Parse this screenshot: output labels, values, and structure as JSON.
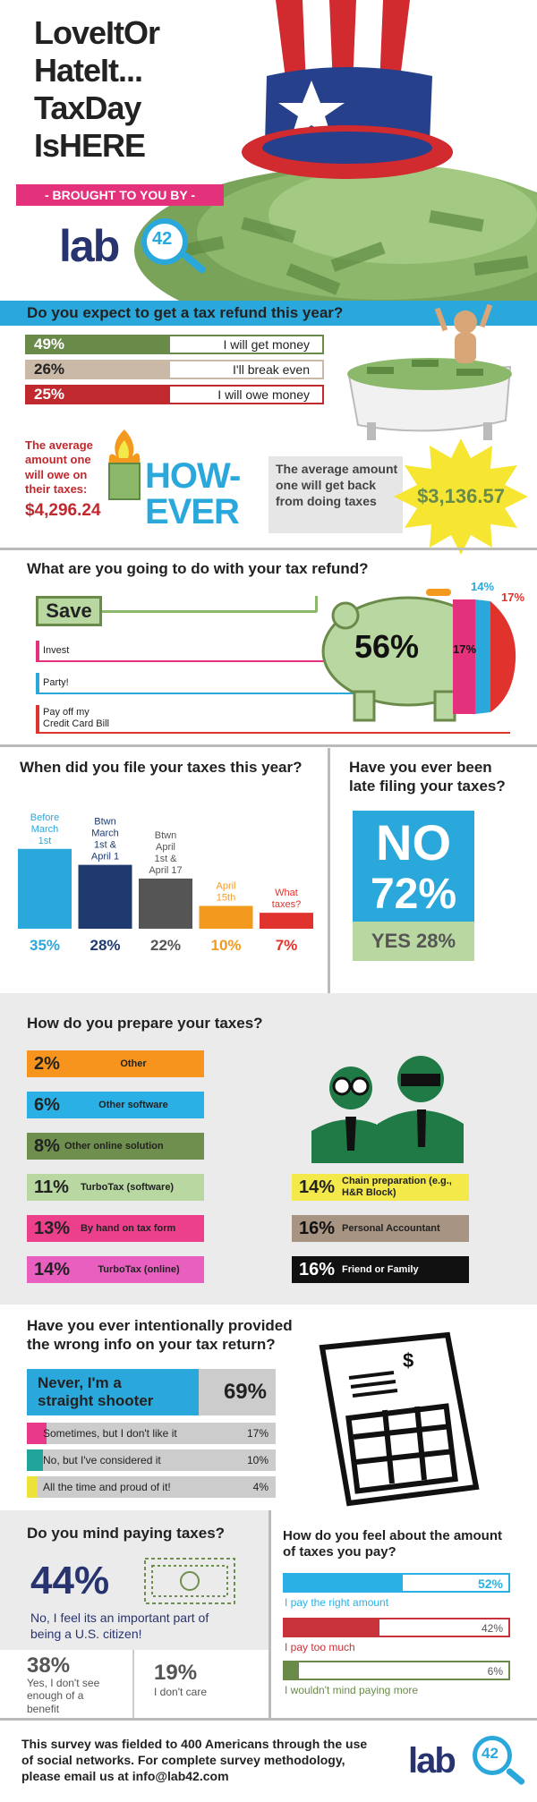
{
  "hero": {
    "title_lines": [
      "LoveItOr",
      "HateIt...",
      "TaxDay",
      "IsHERE"
    ],
    "brought_by": "- BROUGHT TO YOU BY -",
    "logo_text": "lab",
    "logo_number": "42"
  },
  "refund_expect": {
    "question": "Do you expect to get a tax refund this year?",
    "rows": [
      {
        "pct": "49%",
        "label": "I will get money",
        "color": "#6a8a4a"
      },
      {
        "pct": "26%",
        "label": "I'll break even",
        "color": "#c9b9a6"
      },
      {
        "pct": "25%",
        "label": "I will owe money",
        "color": "#c0292e"
      }
    ],
    "owe_text": "The average amount one will owe on their taxes:",
    "owe_value": "$4,296.24",
    "however": "HOW-EVER",
    "back_text": "The average amount one will get back from doing taxes",
    "back_value": "$3,136.57"
  },
  "refund_use": {
    "question": "What are you going to do with your tax refund?",
    "save": "Save",
    "items": [
      "Invest",
      "Party!",
      "Pay off my Credit Card Bill"
    ],
    "pig_pct": "56%",
    "stripe_pcts": [
      "17%",
      "14%",
      "17%"
    ]
  },
  "filed_when": {
    "question": "When did you file your taxes this year?",
    "bars": [
      {
        "label": "Before March 1st",
        "pct": "35%",
        "value": 35,
        "color": "#2aa8dc"
      },
      {
        "label": "Btwn March 1st & April 1",
        "pct": "28%",
        "value": 28,
        "color": "#1f3a6e"
      },
      {
        "label": "Btwn April 1st & April 17",
        "pct": "22%",
        "value": 22,
        "color": "#555555"
      },
      {
        "label": "April 15th",
        "pct": "10%",
        "value": 10,
        "color": "#f39a1e"
      },
      {
        "label": "What taxes?",
        "pct": "7%",
        "value": 7,
        "color": "#e0332d"
      }
    ]
  },
  "late": {
    "question": "Have you ever been late filing your taxes?",
    "no_label": "NO",
    "no_pct": "72%",
    "yes_label": "YES 28%"
  },
  "prepare": {
    "question": "How do you prepare your taxes?",
    "left": [
      {
        "pct": "2%",
        "label": "Other",
        "color": "#f7941d"
      },
      {
        "pct": "6%",
        "label": "Other software",
        "color": "#2ab0e4"
      },
      {
        "pct": "8%",
        "label": "Other online solution",
        "color": "#6f8f4f"
      },
      {
        "pct": "11%",
        "label": "TurboTax (software)",
        "color": "#b9d7a0"
      },
      {
        "pct": "13%",
        "label": "By hand on tax form",
        "color": "#ec3f8c"
      },
      {
        "pct": "14%",
        "label": "TurboTax (online)",
        "color": "#e85fc0"
      }
    ],
    "right": [
      {
        "pct": "14%",
        "label": "Chain preparation (e.g., H&R Block)",
        "color": "#f4e94a"
      },
      {
        "pct": "16%",
        "label": "Personal Accountant",
        "color": "#a79482"
      },
      {
        "pct": "16%",
        "label": "Friend or Family",
        "color": "#111111"
      }
    ]
  },
  "wrong_info": {
    "question": "Have you ever intentionally provided the wrong info on your tax return?",
    "rows": [
      {
        "label": "Never, I'm a straight shooter",
        "pct": "69%",
        "value": 69,
        "color": "#2aa8dc"
      },
      {
        "label": "Sometimes, but I don't like it",
        "pct": "17%",
        "value": 17,
        "color": "#e8398b"
      },
      {
        "label": "No, but I've considered it",
        "pct": "10%",
        "value": 10,
        "color": "#21a59a"
      },
      {
        "label": "All the time and proud of it!",
        "pct": "4%",
        "value": 4,
        "color": "#ece23a"
      }
    ]
  },
  "mind_paying": {
    "question": "Do you mind paying taxes?",
    "main_pct": "44%",
    "main_label": "No, I feel its an important part of being a U.S. citizen!",
    "a_pct": "38%",
    "a_label": "Yes, I don't see enough of a benefit",
    "b_pct": "19%",
    "b_label": "I don't care"
  },
  "feel_amount": {
    "question": "How do you feel about the amount of taxes you pay?",
    "rows": [
      {
        "label": "I pay the right amount",
        "pct": "52%",
        "value": 52,
        "color": "#2ab0e4"
      },
      {
        "label": "I pay too much",
        "pct": "42%",
        "value": 42,
        "color": "#c8323a"
      },
      {
        "label": "I wouldn't mind paying more",
        "pct": "6%",
        "value": 6,
        "color": "#6a8a4a"
      }
    ]
  },
  "footer": {
    "text": "This survey was fielded to 400 Americans through the use of social networks. For complete survey methodology, please email us at info@lab42.com",
    "logo_text": "lab",
    "logo_number": "42"
  }
}
